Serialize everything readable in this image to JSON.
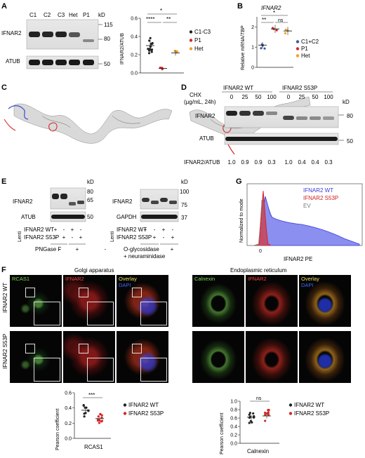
{
  "panels": {
    "A": {
      "letter": "A",
      "lanes": [
        "C1",
        "C2",
        "C3",
        "Het",
        "P1"
      ],
      "kd": "kD",
      "markers_top": [
        "115",
        "80"
      ],
      "marker_bottom": "50",
      "row_labels": [
        "IFNAR2",
        "ATUB"
      ],
      "sig_marks": [
        "*",
        "****",
        "**"
      ],
      "chart_data": {
        "type": "scatter",
        "ylabel": "IFNAR2/ATUB",
        "ylim": [
          0,
          0.6
        ],
        "yticks": [
          "0.0",
          "0.2",
          "0.4",
          "0.6"
        ],
        "series": [
          {
            "name": "C1-C3",
            "color": "#222222",
            "mean": 0.3
          },
          {
            "name": "P1",
            "color": "#d62728",
            "mean": 0.05
          },
          {
            "name": "Het",
            "color": "#f0a020",
            "mean": 0.22
          }
        ]
      }
    },
    "B": {
      "letter": "B",
      "gene": "IFNAR2",
      "sig_marks": [
        "*",
        "**",
        "ns"
      ],
      "chart_data": {
        "type": "scatter",
        "ylabel": "Relative mRNA/",
        "ylabel_gene": "TBP",
        "ylim": [
          0,
          2.5
        ],
        "yticks": [
          "0",
          "1",
          "2"
        ],
        "series": [
          {
            "name": "C1+C2",
            "color": "#3a5ba9",
            "mean": 1.1
          },
          {
            "name": "P1",
            "color": "#d62728",
            "mean": 1.9
          },
          {
            "name": "Het",
            "color": "#f0a020",
            "mean": 1.8
          }
        ]
      }
    },
    "C": {
      "letter": "C"
    },
    "D": {
      "letter": "D",
      "groups": [
        "IFNAR2 WT",
        "IFNAR2 S53P"
      ],
      "chx": "CHX",
      "chx_unit": "(µg/mL, 24h)",
      "doses": [
        "0",
        "25",
        "50",
        "100",
        "0",
        "25",
        "50",
        "100"
      ],
      "kd": "kD",
      "marker_top": "80",
      "marker_bottom": "50",
      "row_labels": [
        "IFNAR2",
        "ATUB"
      ],
      "ratio_label": "IFNAR2/ATUB",
      "ratios": [
        "1.0",
        "0.9",
        "0.9",
        "0.3",
        "1.0",
        "0.4",
        "0.4",
        "0.3"
      ]
    },
    "E": {
      "letter": "E",
      "left": {
        "kd": "kD",
        "markers": [
          "80",
          "65",
          "50"
        ],
        "row_labels": [
          "IFNAR2",
          "ATUB"
        ],
        "lenti": "Lenti",
        "rows": [
          "IFNAR2 WT",
          "IFNAR2 S53P"
        ],
        "marks_wt": [
          "+",
          "-",
          "+",
          "-"
        ],
        "marks_s53p": [
          "-",
          "+",
          "-",
          "+"
        ],
        "treatment": "PNGase F",
        "treat_marks": [
          "-",
          "+"
        ]
      },
      "right": {
        "kd": "kD",
        "markers": [
          "100",
          "75",
          "37"
        ],
        "row_labels": [
          "IFNAR2",
          "GAPDH"
        ],
        "lenti": "Lenti",
        "rows": [
          "IFNAR2 WT",
          "IFNAR2 S53P"
        ],
        "marks_wt": [
          "+",
          "-",
          "+",
          "-"
        ],
        "marks_s53p": [
          "-",
          "+",
          "-",
          "+"
        ],
        "treatment_lines": [
          "O-glycosidase",
          "+ neuraminidase"
        ],
        "treat_marks": [
          "-",
          "+"
        ]
      }
    },
    "G": {
      "letter": "G",
      "chart_data": {
        "type": "area",
        "ylabel": "Normalized to mode",
        "xlabel": "IFNAR2 PE",
        "xticks": [
          "0"
        ],
        "series": [
          {
            "name": "IFNAR2 WT",
            "color": "#3b3bd9"
          },
          {
            "name": "IFNAR2 S53P",
            "color": "#d42020"
          },
          {
            "name": "EV",
            "color": "#7a7a7a"
          }
        ]
      }
    },
    "F": {
      "letter": "F",
      "golgi_title": "Golgi apparatus",
      "er_title": "Endoplasmic reticulum",
      "row_labels": [
        "IFNAR2 WT",
        "IFNAR2 S53P"
      ],
      "golgi_channels": [
        "RCAS1",
        "IFNAR2",
        "Overlay"
      ],
      "er_channels": [
        "Calnexin",
        "IFNAR2",
        "Overlay"
      ],
      "dapi": "DAPI",
      "golgi_chart": {
        "type": "scatter",
        "ylabel": "Pearson coefficient",
        "xlabel": "RCAS1",
        "sig": "***",
        "ylim": [
          0,
          0.6
        ],
        "yticks": [
          "0.0",
          "0.2",
          "0.4",
          "0.6"
        ],
        "series": [
          {
            "name": "IFNAR2 WT",
            "color": "#222222",
            "mean": 0.37
          },
          {
            "name": "IFNAR2 S53P",
            "color": "#d62728",
            "mean": 0.26
          }
        ]
      },
      "er_chart": {
        "type": "scatter",
        "ylabel": "Pearson coefficient",
        "xlabel": "Calnexin",
        "sig": "ns",
        "ylim": [
          0,
          1.0
        ],
        "yticks": [
          "0.0",
          "0.2",
          "0.4",
          "0.6",
          "0.8",
          "1.0"
        ],
        "series": [
          {
            "name": "IFNAR2 WT",
            "color": "#222222",
            "mean": 0.62
          },
          {
            "name": "IFNAR2 S53P",
            "color": "#d62728",
            "mean": 0.65
          }
        ]
      }
    }
  }
}
